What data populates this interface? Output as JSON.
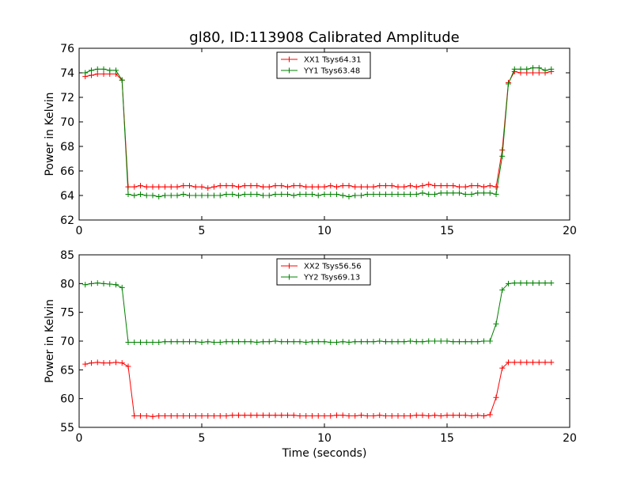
{
  "figure": {
    "title": "gl80, ID:113908 Calibrated Amplitude"
  },
  "chart_data": [
    {
      "type": "line",
      "title": "gl80, ID:113908 Calibrated Amplitude",
      "xlabel": "",
      "ylabel": "Power in Kelvin",
      "xlim": [
        0,
        20
      ],
      "ylim": [
        62,
        76
      ],
      "xticks": [
        "0",
        "5",
        "10",
        "15",
        "20"
      ],
      "yticks": [
        "62",
        "64",
        "66",
        "68",
        "70",
        "72",
        "74",
        "76"
      ],
      "grid": false,
      "legend_position": "top-center",
      "series": [
        {
          "name": "XX1 Tsys64.31",
          "color": "#ff0000",
          "x": [
            0.25,
            0.5,
            0.75,
            1.0,
            1.25,
            1.5,
            1.75,
            2.0,
            2.25,
            2.5,
            2.75,
            3.0,
            3.25,
            3.5,
            3.75,
            4.0,
            4.25,
            4.5,
            4.75,
            5.0,
            5.25,
            5.5,
            5.75,
            6.0,
            6.25,
            6.5,
            6.75,
            7.0,
            7.25,
            7.5,
            7.75,
            8.0,
            8.25,
            8.5,
            8.75,
            9.0,
            9.25,
            9.5,
            9.75,
            10.0,
            10.25,
            10.5,
            10.75,
            11.0,
            11.25,
            11.5,
            11.75,
            12.0,
            12.25,
            12.5,
            12.75,
            13.0,
            13.25,
            13.5,
            13.75,
            14.0,
            14.25,
            14.5,
            14.75,
            15.0,
            15.25,
            15.5,
            15.75,
            16.0,
            16.25,
            16.5,
            16.75,
            17.0,
            17.25,
            17.5,
            17.75,
            18.0,
            18.25,
            18.5,
            18.75,
            19.0,
            19.25
          ],
          "values": [
            73.7,
            73.8,
            73.9,
            73.9,
            73.9,
            73.9,
            73.4,
            64.7,
            64.7,
            64.8,
            64.7,
            64.7,
            64.7,
            64.7,
            64.7,
            64.7,
            64.8,
            64.8,
            64.7,
            64.7,
            64.6,
            64.7,
            64.8,
            64.8,
            64.8,
            64.7,
            64.8,
            64.8,
            64.8,
            64.7,
            64.7,
            64.8,
            64.8,
            64.7,
            64.8,
            64.8,
            64.7,
            64.7,
            64.7,
            64.7,
            64.8,
            64.7,
            64.8,
            64.8,
            64.7,
            64.7,
            64.7,
            64.7,
            64.8,
            64.8,
            64.8,
            64.7,
            64.7,
            64.8,
            64.7,
            64.8,
            64.9,
            64.8,
            64.8,
            64.8,
            64.8,
            64.7,
            64.7,
            64.8,
            64.8,
            64.7,
            64.8,
            64.7,
            67.7,
            73.2,
            74.1,
            74.0,
            74.0,
            74.0,
            74.0,
            74.0,
            74.1
          ]
        },
        {
          "name": "YY1 Tsys63.48",
          "color": "#008000",
          "x": [
            0.25,
            0.5,
            0.75,
            1.0,
            1.25,
            1.5,
            1.75,
            2.0,
            2.25,
            2.5,
            2.75,
            3.0,
            3.25,
            3.5,
            3.75,
            4.0,
            4.25,
            4.5,
            4.75,
            5.0,
            5.25,
            5.5,
            5.75,
            6.0,
            6.25,
            6.5,
            6.75,
            7.0,
            7.25,
            7.5,
            7.75,
            8.0,
            8.25,
            8.5,
            8.75,
            9.0,
            9.25,
            9.5,
            9.75,
            10.0,
            10.25,
            10.5,
            10.75,
            11.0,
            11.25,
            11.5,
            11.75,
            12.0,
            12.25,
            12.5,
            12.75,
            13.0,
            13.25,
            13.5,
            13.75,
            14.0,
            14.25,
            14.5,
            14.75,
            15.0,
            15.25,
            15.5,
            15.75,
            16.0,
            16.25,
            16.5,
            16.75,
            17.0,
            17.25,
            17.5,
            17.75,
            18.0,
            18.25,
            18.5,
            18.75,
            19.0,
            19.25
          ],
          "values": [
            74.0,
            74.2,
            74.3,
            74.3,
            74.2,
            74.2,
            73.4,
            64.1,
            64.0,
            64.1,
            64.0,
            64.0,
            63.9,
            64.0,
            64.0,
            64.0,
            64.1,
            64.0,
            64.0,
            64.0,
            64.0,
            64.0,
            64.0,
            64.1,
            64.1,
            64.0,
            64.1,
            64.1,
            64.1,
            64.0,
            64.0,
            64.1,
            64.1,
            64.1,
            64.0,
            64.1,
            64.1,
            64.1,
            64.0,
            64.1,
            64.1,
            64.1,
            64.0,
            63.9,
            64.0,
            64.0,
            64.1,
            64.1,
            64.1,
            64.1,
            64.1,
            64.1,
            64.1,
            64.1,
            64.1,
            64.2,
            64.1,
            64.1,
            64.2,
            64.2,
            64.2,
            64.2,
            64.1,
            64.1,
            64.2,
            64.2,
            64.2,
            64.1,
            67.2,
            73.1,
            74.3,
            74.3,
            74.3,
            74.4,
            74.4,
            74.2,
            74.3
          ]
        }
      ]
    },
    {
      "type": "line",
      "title": "",
      "xlabel": "Time (seconds)",
      "ylabel": "Power in Kelvin",
      "xlim": [
        0,
        20
      ],
      "ylim": [
        55,
        85
      ],
      "xticks": [
        "0",
        "5",
        "10",
        "15",
        "20"
      ],
      "yticks": [
        "55",
        "60",
        "65",
        "70",
        "75",
        "80",
        "85"
      ],
      "grid": false,
      "legend_position": "top-center",
      "series": [
        {
          "name": "XX2 Tsys56.56",
          "color": "#ff0000",
          "x": [
            0.25,
            0.5,
            0.75,
            1.0,
            1.25,
            1.5,
            1.75,
            2.0,
            2.25,
            2.5,
            2.75,
            3.0,
            3.25,
            3.5,
            3.75,
            4.0,
            4.25,
            4.5,
            4.75,
            5.0,
            5.25,
            5.5,
            5.75,
            6.0,
            6.25,
            6.5,
            6.75,
            7.0,
            7.25,
            7.5,
            7.75,
            8.0,
            8.25,
            8.5,
            8.75,
            9.0,
            9.25,
            9.5,
            9.75,
            10.0,
            10.25,
            10.5,
            10.75,
            11.0,
            11.25,
            11.5,
            11.75,
            12.0,
            12.25,
            12.5,
            12.75,
            13.0,
            13.25,
            13.5,
            13.75,
            14.0,
            14.25,
            14.5,
            14.75,
            15.0,
            15.25,
            15.5,
            15.75,
            16.0,
            16.25,
            16.5,
            16.75,
            17.0,
            17.25,
            17.5,
            17.75,
            18.0,
            18.25,
            18.5,
            18.75,
            19.0,
            19.25
          ],
          "values": [
            66.0,
            66.2,
            66.3,
            66.2,
            66.2,
            66.3,
            66.2,
            65.6,
            57.0,
            57.0,
            57.0,
            56.9,
            57.0,
            57.0,
            57.0,
            57.0,
            57.0,
            57.0,
            57.0,
            57.0,
            57.0,
            57.0,
            57.0,
            57.0,
            57.1,
            57.1,
            57.1,
            57.1,
            57.1,
            57.1,
            57.1,
            57.1,
            57.1,
            57.1,
            57.1,
            57.0,
            57.0,
            57.0,
            57.0,
            57.0,
            57.0,
            57.1,
            57.1,
            57.0,
            57.0,
            57.1,
            57.0,
            57.0,
            57.1,
            57.0,
            57.0,
            57.0,
            57.0,
            57.0,
            57.1,
            57.1,
            57.0,
            57.1,
            57.0,
            57.1,
            57.1,
            57.1,
            57.1,
            57.0,
            57.1,
            57.0,
            57.2,
            60.2,
            65.3,
            66.3,
            66.3,
            66.3,
            66.3,
            66.3,
            66.3,
            66.3,
            66.3
          ]
        },
        {
          "name": "YY2 Tsys69.13",
          "color": "#008000",
          "x": [
            0.25,
            0.5,
            0.75,
            1.0,
            1.25,
            1.5,
            1.75,
            2.0,
            2.25,
            2.5,
            2.75,
            3.0,
            3.25,
            3.5,
            3.75,
            4.0,
            4.25,
            4.5,
            4.75,
            5.0,
            5.25,
            5.5,
            5.75,
            6.0,
            6.25,
            6.5,
            6.75,
            7.0,
            7.25,
            7.5,
            7.75,
            8.0,
            8.25,
            8.5,
            8.75,
            9.0,
            9.25,
            9.5,
            9.75,
            10.0,
            10.25,
            10.5,
            10.75,
            11.0,
            11.25,
            11.5,
            11.75,
            12.0,
            12.25,
            12.5,
            12.75,
            13.0,
            13.25,
            13.5,
            13.75,
            14.0,
            14.25,
            14.5,
            14.75,
            15.0,
            15.25,
            15.5,
            15.75,
            16.0,
            16.25,
            16.5,
            16.75,
            17.0,
            17.25,
            17.5,
            17.75,
            18.0,
            18.25,
            18.5,
            18.75,
            19.0,
            19.25
          ],
          "values": [
            79.8,
            80.0,
            80.1,
            80.0,
            79.9,
            79.8,
            79.3,
            69.8,
            69.8,
            69.8,
            69.8,
            69.8,
            69.8,
            69.9,
            69.9,
            69.9,
            69.9,
            69.9,
            69.9,
            69.8,
            69.9,
            69.8,
            69.8,
            69.9,
            69.9,
            69.9,
            69.9,
            69.9,
            69.8,
            69.9,
            69.9,
            70.0,
            69.9,
            69.9,
            69.9,
            69.9,
            69.8,
            69.9,
            69.9,
            69.9,
            69.8,
            69.8,
            69.9,
            69.8,
            69.9,
            69.9,
            69.9,
            69.9,
            70.0,
            69.9,
            69.9,
            69.9,
            69.9,
            70.0,
            69.9,
            69.9,
            70.0,
            70.0,
            70.0,
            70.0,
            69.9,
            69.9,
            69.9,
            69.9,
            69.9,
            70.0,
            70.0,
            73.0,
            78.9,
            80.0,
            80.1,
            80.1,
            80.1,
            80.1,
            80.1,
            80.1,
            80.1
          ]
        }
      ]
    }
  ]
}
